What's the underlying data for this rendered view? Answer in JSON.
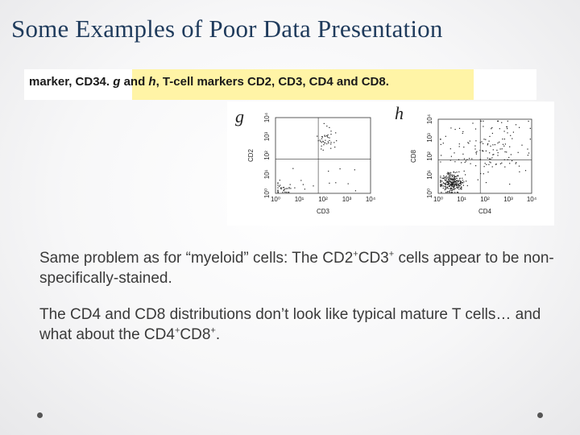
{
  "slide": {
    "title": "Some Examples of Poor Data Presentation"
  },
  "caption": {
    "prefix": "marker, CD34. ",
    "letter_g": "g",
    "and_word": " and ",
    "letter_h": "h",
    "suffix": ", T-cell markers CD2, CD3, CD4 and CD8."
  },
  "figure": {
    "panels": [
      {
        "letter": "g",
        "y_label": "CD2",
        "x_label": "CD3",
        "tick_labels": [
          "10⁰",
          "10¹",
          "10²",
          "10³",
          "10⁴"
        ],
        "quadrant_line_fraction": 0.45
      },
      {
        "letter": "h",
        "y_label": "CD8",
        "x_label": "CD4",
        "tick_labels": [
          "10⁰",
          "10¹",
          "10²",
          "10³",
          "10⁴"
        ],
        "quadrant_line_fraction": 0.45
      }
    ]
  },
  "body": {
    "para1_a": "Same problem as for “myeloid” cells: The CD2",
    "para1_sup1": "+",
    "para1_b": "CD3",
    "para1_sup2": "+",
    "para1_c": " cells appear to be non-specifically-stained.",
    "para2_a": "The CD4 and CD8 distributions don’t look like typical mature T cells… and what about the CD4",
    "para2_sup1": "+",
    "para2_b": "CD8",
    "para2_sup2": "+",
    "para2_c": "."
  },
  "colors": {
    "title": "#1f3b5c",
    "highlight": "#fff4a6",
    "body_text": "#3a3a3a"
  }
}
